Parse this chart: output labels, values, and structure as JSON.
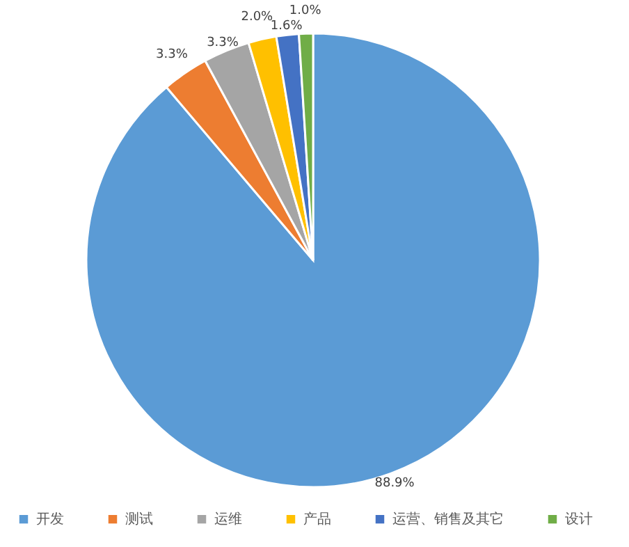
{
  "chart_data": {
    "type": "pie",
    "categories": [
      "开发",
      "测试",
      "运维",
      "产品",
      "运营、销售及其它",
      "设计"
    ],
    "values": [
      88.9,
      3.3,
      3.3,
      2.0,
      1.6,
      1.0
    ],
    "value_labels": [
      "88.9%",
      "3.3%",
      "3.3%",
      "2.0%",
      "1.6%",
      "1.0%"
    ],
    "colors": [
      "#5b9bd5",
      "#ed7d31",
      "#a5a5a5",
      "#ffc000",
      "#4472c4",
      "#70ad47"
    ],
    "legend": "bottom"
  }
}
